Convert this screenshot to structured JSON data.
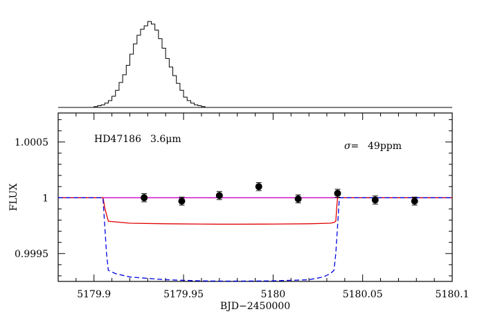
{
  "chart_data": [
    {
      "type": "histogram",
      "bin_width": 0.002,
      "bins": [
        {
          "x0": 5179.9,
          "count": 1
        },
        {
          "x0": 5179.902,
          "count": 2
        },
        {
          "x0": 5179.904,
          "count": 3
        },
        {
          "x0": 5179.906,
          "count": 5
        },
        {
          "x0": 5179.908,
          "count": 8
        },
        {
          "x0": 5179.91,
          "count": 13
        },
        {
          "x0": 5179.912,
          "count": 20
        },
        {
          "x0": 5179.914,
          "count": 29
        },
        {
          "x0": 5179.916,
          "count": 38
        },
        {
          "x0": 5179.918,
          "count": 49
        },
        {
          "x0": 5179.92,
          "count": 62
        },
        {
          "x0": 5179.922,
          "count": 74
        },
        {
          "x0": 5179.924,
          "count": 84
        },
        {
          "x0": 5179.926,
          "count": 91
        },
        {
          "x0": 5179.928,
          "count": 95
        },
        {
          "x0": 5179.93,
          "count": 100
        },
        {
          "x0": 5179.932,
          "count": 97
        },
        {
          "x0": 5179.934,
          "count": 90
        },
        {
          "x0": 5179.936,
          "count": 80
        },
        {
          "x0": 5179.938,
          "count": 69
        },
        {
          "x0": 5179.94,
          "count": 57
        },
        {
          "x0": 5179.942,
          "count": 47
        },
        {
          "x0": 5179.944,
          "count": 37
        },
        {
          "x0": 5179.946,
          "count": 28
        },
        {
          "x0": 5179.948,
          "count": 20
        },
        {
          "x0": 5179.95,
          "count": 12
        },
        {
          "x0": 5179.952,
          "count": 8
        },
        {
          "x0": 5179.954,
          "count": 5
        },
        {
          "x0": 5179.956,
          "count": 3
        },
        {
          "x0": 5179.958,
          "count": 2
        },
        {
          "x0": 5179.96,
          "count": 1
        }
      ]
    },
    {
      "type": "scatter",
      "xlabel": "BJD−2450000",
      "ylabel": "FLUX",
      "xlim": [
        5179.88,
        5180.1
      ],
      "ylim": [
        0.99925,
        1.00076
      ],
      "x_ticks": [
        "5179.9",
        "5179.95",
        "5180",
        "5180.05",
        "5180.1"
      ],
      "x_tick_values": [
        5179.9,
        5179.95,
        5180,
        5180.05,
        5180.1
      ],
      "y_ticks": [
        "0.9995",
        "1",
        "1.0005"
      ],
      "y_tick_values": [
        0.9995,
        1.0,
        1.0005
      ],
      "label_name": "HD47186",
      "label_band": "3.6μm",
      "sigma_prefix": "σ=",
      "sigma_value": "49ppm",
      "points": [
        {
          "x": 5179.928,
          "y": 1.0,
          "err": 3.6e-05
        },
        {
          "x": 5179.949,
          "y": 0.99997,
          "err": 3.6e-05
        },
        {
          "x": 5179.97,
          "y": 1.00002,
          "err": 3.6e-05
        },
        {
          "x": 5179.992,
          "y": 1.0001,
          "err": 3.6e-05
        },
        {
          "x": 5180.014,
          "y": 0.99999,
          "err": 3.6e-05
        },
        {
          "x": 5180.036,
          "y": 1.00004,
          "err": 3.6e-05
        },
        {
          "x": 5180.057,
          "y": 0.99998,
          "err": 3.6e-05
        },
        {
          "x": 5180.079,
          "y": 0.99997,
          "err": 3.6e-05
        }
      ],
      "models": [
        {
          "color": "#cc00cc",
          "style": "solid",
          "x": [
            5179.88,
            5180.1
          ],
          "y": [
            1.0,
            1.0
          ]
        },
        {
          "color": "#e00000",
          "style": "solid",
          "x": [
            5179.88,
            5179.905,
            5179.9055,
            5179.906,
            5179.908,
            5179.92,
            5179.94,
            5179.96,
            5179.97,
            5179.98,
            5180.0,
            5180.02,
            5180.032,
            5180.034,
            5180.035,
            5180.0355,
            5180.036,
            5180.1
          ],
          "y": [
            1.0,
            1.0,
            0.99996,
            0.99991,
            0.99979,
            0.999772,
            0.999767,
            0.999764,
            0.999763,
            0.999763,
            0.999764,
            0.999767,
            0.999772,
            0.999779,
            0.99979,
            0.99991,
            1.0,
            1.0
          ]
        },
        {
          "color": "#0000e0",
          "style": "dashed",
          "x": [
            5179.88,
            5179.905,
            5179.906,
            5179.907,
            5179.908,
            5179.912,
            5179.92,
            5179.94,
            5179.96,
            5179.97,
            5179.98,
            5180.0,
            5180.02,
            5180.028,
            5180.032,
            5180.034,
            5180.035,
            5180.036,
            5180.037,
            5180.1
          ],
          "y": [
            1.0,
            1.0,
            0.99975,
            0.9995,
            0.99935,
            0.99932,
            0.99929,
            0.999265,
            0.999255,
            0.999253,
            0.999253,
            0.999255,
            0.999265,
            0.99929,
            0.99932,
            0.99935,
            0.9995,
            0.99975,
            1.0,
            1.0
          ]
        }
      ]
    }
  ]
}
